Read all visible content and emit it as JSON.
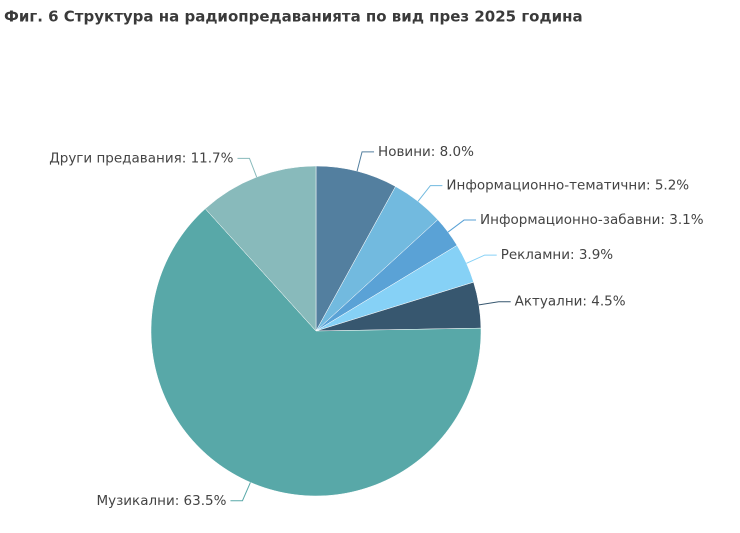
{
  "chart_data": {
    "type": "pie",
    "title": "Фиг. 6 Структура на радиопредаванията по вид през 2025 година",
    "values": [
      8.0,
      5.2,
      3.1,
      3.9,
      4.5,
      63.5,
      11.7
    ],
    "value_labels": [
      "Новини: 8.0%",
      "Информационно-тематични: 5.2%",
      "Информационно-забавни: 3.1%",
      "Рекламни: 3.9%",
      "Актуални: 4.5%",
      "Музикални: 63.5%",
      "Други предавания: 11.7%"
    ],
    "colors": [
      "#537f9f",
      "#72badf",
      "#5aa2d6",
      "#86d1f6",
      "#37576f",
      "#58a8a8",
      "#88babb"
    ]
  }
}
